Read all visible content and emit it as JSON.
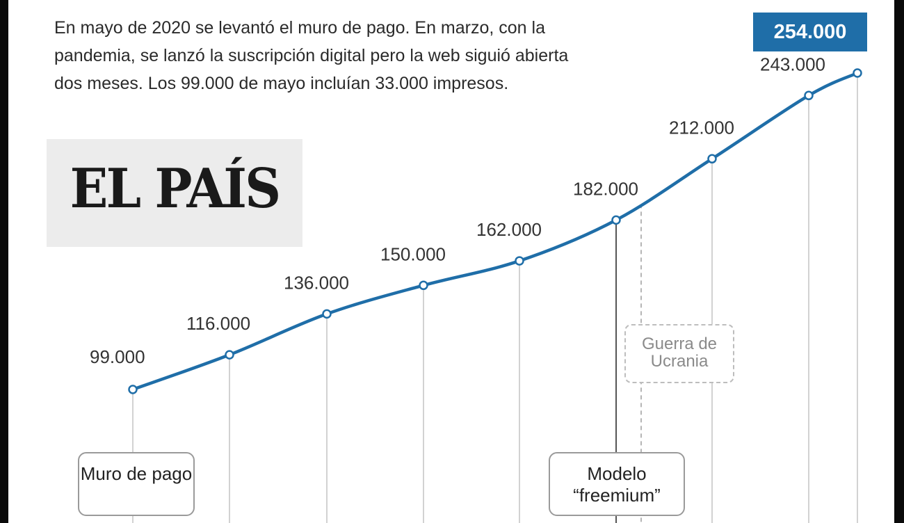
{
  "intro": "En mayo de 2020 se levantó el muro de pago. En marzo, con la pandemia, se lanzó la suscripción digital pero la web siguió abierta dos meses. Los 99.000 de mayo incluían 33.000 impresos.",
  "logo": "EL PAÍS",
  "latest_value": "254.000",
  "annotations": {
    "muro": "Muro de pago",
    "freemium": "Modelo “freemium”",
    "guerra": "Guerra de Ucrania"
  },
  "chart_data": {
    "type": "line",
    "x": [
      0,
      1,
      2,
      3,
      4,
      5,
      6,
      7,
      8
    ],
    "series": [
      {
        "values": [
          99000,
          116000,
          136000,
          150000,
          162000,
          182000,
          212000,
          243000,
          254000
        ],
        "labels": [
          "99.000",
          "116.000",
          "136.000",
          "150.000",
          "162.000",
          "182.000",
          "212.000",
          "243.000",
          "254.000"
        ]
      }
    ],
    "line_color": "#1f6ea8",
    "grid": false,
    "legend": "none"
  }
}
